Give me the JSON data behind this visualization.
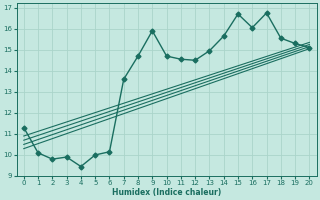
{
  "xlabel": "Humidex (Indice chaleur)",
  "ylabel": "",
  "xlim": [
    -0.5,
    20.5
  ],
  "ylim": [
    9,
    17.2
  ],
  "yticks": [
    9,
    10,
    11,
    12,
    13,
    14,
    15,
    16,
    17
  ],
  "xticks": [
    0,
    1,
    2,
    3,
    4,
    5,
    6,
    7,
    8,
    9,
    10,
    11,
    12,
    13,
    14,
    15,
    16,
    17,
    18,
    19,
    20
  ],
  "bg_color": "#c5e8e0",
  "grid_color": "#aad4ca",
  "line_color": "#1a6e60",
  "zigzag": {
    "x": [
      0,
      1,
      2,
      3,
      4,
      5,
      6,
      7,
      8,
      9,
      10,
      11,
      12,
      13,
      14,
      15,
      16,
      17,
      18,
      19,
      20
    ],
    "y": [
      11.3,
      10.1,
      9.8,
      9.9,
      9.45,
      10.0,
      10.15,
      13.6,
      14.7,
      15.9,
      14.7,
      14.55,
      14.5,
      14.95,
      15.65,
      16.7,
      16.05,
      16.75,
      15.55,
      15.3,
      15.1
    ],
    "marker": "D",
    "lw": 1.0,
    "ms": 2.5
  },
  "straight_lines": [
    {
      "x": [
        0,
        20
      ],
      "y": [
        10.3,
        15.05
      ]
    },
    {
      "x": [
        0,
        20
      ],
      "y": [
        10.5,
        15.15
      ]
    },
    {
      "x": [
        0,
        20
      ],
      "y": [
        10.7,
        15.25
      ]
    },
    {
      "x": [
        0,
        20
      ],
      "y": [
        10.9,
        15.35
      ]
    }
  ]
}
